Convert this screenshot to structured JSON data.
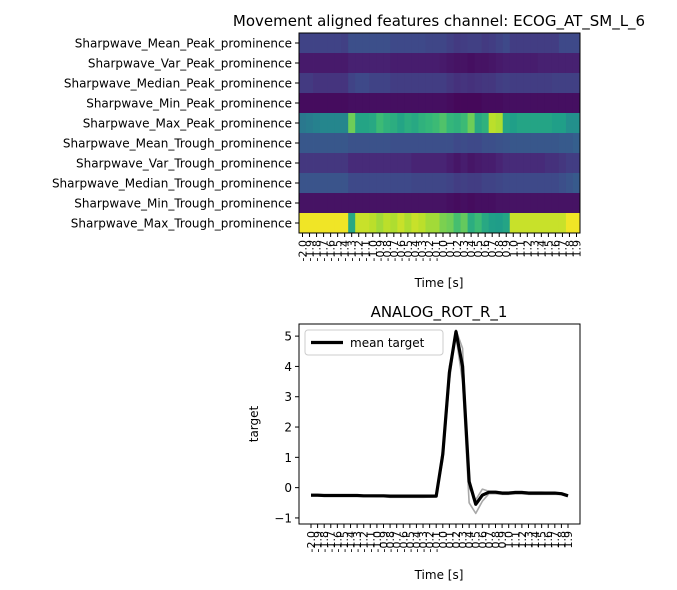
{
  "figure": {
    "panels": [
      {
        "title": "Movement aligned features channel: ECOG_AT_SM_L_6",
        "xlabel": "Time [s]"
      },
      {
        "title": "ANALOG_ROT_R_1",
        "xlabel": "Time [s]",
        "ylabel": "target"
      }
    ]
  },
  "chart_data": [
    {
      "type": "heatmap",
      "title": "Movement aligned features channel: ECOG_AT_SM_L_6",
      "xlabel": "Time [s]",
      "colormap": "viridis",
      "rows": [
        "Sharpwave_Mean_Peak_prominence",
        "Sharpwave_Var_Peak_prominence",
        "Sharpwave_Median_Peak_prominence",
        "Sharpwave_Min_Peak_prominence",
        "Sharpwave_Max_Peak_prominence",
        "Sharpwave_Mean_Trough_prominence",
        "Sharpwave_Var_Trough_prominence",
        "Sharpwave_Median_Trough_prominence",
        "Sharpwave_Min_Trough_prominence",
        "Sharpwave_Max_Trough_prominence"
      ],
      "x_ticks": [
        "-2.0",
        "-1.9",
        "-1.8",
        "-1.7",
        "-1.6",
        "-1.5",
        "-1.4",
        "-1.3",
        "-1.2",
        "-1.1",
        "-1.0",
        "-0.9",
        "-0.8",
        "-0.7",
        "-0.6",
        "-0.5",
        "-0.4",
        "-0.3",
        "-0.2",
        "-0.1",
        "0.0",
        "0.1",
        "0.2",
        "0.3",
        "0.4",
        "0.5",
        "0.6",
        "0.7",
        "0.8",
        "0.9",
        "1.0",
        "1.1",
        "1.2",
        "1.3",
        "1.4",
        "1.5",
        "1.6",
        "1.7",
        "1.8",
        "1.9"
      ],
      "values": [
        [
          0.2,
          0.2,
          0.2,
          0.2,
          0.2,
          0.2,
          0.19,
          0.24,
          0.24,
          0.24,
          0.24,
          0.24,
          0.24,
          0.22,
          0.22,
          0.22,
          0.22,
          0.22,
          0.21,
          0.21,
          0.21,
          0.19,
          0.17,
          0.18,
          0.19,
          0.19,
          0.17,
          0.18,
          0.2,
          0.22,
          0.18,
          0.18,
          0.18,
          0.18,
          0.18,
          0.18,
          0.18,
          0.22,
          0.22,
          0.22
        ],
        [
          0.07,
          0.07,
          0.07,
          0.07,
          0.07,
          0.07,
          0.07,
          0.09,
          0.09,
          0.09,
          0.09,
          0.09,
          0.09,
          0.08,
          0.08,
          0.08,
          0.08,
          0.08,
          0.08,
          0.08,
          0.07,
          0.06,
          0.05,
          0.05,
          0.04,
          0.05,
          0.05,
          0.06,
          0.07,
          0.08,
          0.08,
          0.08,
          0.08,
          0.08,
          0.09,
          0.09,
          0.09,
          0.09,
          0.09,
          0.09
        ],
        [
          0.17,
          0.17,
          0.15,
          0.15,
          0.15,
          0.15,
          0.15,
          0.2,
          0.22,
          0.22,
          0.2,
          0.2,
          0.2,
          0.18,
          0.18,
          0.18,
          0.18,
          0.18,
          0.18,
          0.18,
          0.18,
          0.16,
          0.14,
          0.15,
          0.14,
          0.15,
          0.16,
          0.16,
          0.18,
          0.19,
          0.18,
          0.18,
          0.18,
          0.18,
          0.18,
          0.18,
          0.19,
          0.19,
          0.19,
          0.19
        ],
        [
          0.03,
          0.03,
          0.03,
          0.03,
          0.03,
          0.03,
          0.03,
          0.04,
          0.04,
          0.04,
          0.04,
          0.04,
          0.04,
          0.04,
          0.04,
          0.04,
          0.04,
          0.04,
          0.04,
          0.04,
          0.04,
          0.03,
          0.02,
          0.02,
          0.02,
          0.02,
          0.03,
          0.03,
          0.03,
          0.04,
          0.04,
          0.04,
          0.04,
          0.04,
          0.04,
          0.04,
          0.04,
          0.04,
          0.04,
          0.04
        ],
        [
          0.4,
          0.42,
          0.44,
          0.46,
          0.46,
          0.46,
          0.46,
          0.78,
          0.58,
          0.58,
          0.6,
          0.68,
          0.64,
          0.62,
          0.58,
          0.62,
          0.6,
          0.64,
          0.66,
          0.68,
          0.72,
          0.66,
          0.64,
          0.68,
          0.78,
          0.6,
          0.64,
          0.9,
          0.88,
          0.58,
          0.56,
          0.58,
          0.58,
          0.58,
          0.58,
          0.58,
          0.56,
          0.56,
          0.5,
          0.5
        ],
        [
          0.27,
          0.27,
          0.27,
          0.27,
          0.27,
          0.27,
          0.27,
          0.25,
          0.25,
          0.25,
          0.25,
          0.25,
          0.25,
          0.24,
          0.24,
          0.24,
          0.24,
          0.24,
          0.24,
          0.24,
          0.24,
          0.24,
          0.22,
          0.23,
          0.22,
          0.22,
          0.24,
          0.24,
          0.25,
          0.26,
          0.27,
          0.27,
          0.27,
          0.27,
          0.27,
          0.27,
          0.27,
          0.28,
          0.28,
          0.3
        ],
        [
          0.16,
          0.16,
          0.16,
          0.16,
          0.16,
          0.16,
          0.16,
          0.12,
          0.12,
          0.12,
          0.12,
          0.12,
          0.12,
          0.12,
          0.12,
          0.12,
          0.1,
          0.1,
          0.1,
          0.1,
          0.1,
          0.08,
          0.06,
          0.08,
          0.06,
          0.07,
          0.08,
          0.08,
          0.1,
          0.12,
          0.12,
          0.12,
          0.12,
          0.12,
          0.12,
          0.14,
          0.14,
          0.16,
          0.18,
          0.18
        ],
        [
          0.26,
          0.26,
          0.26,
          0.26,
          0.26,
          0.26,
          0.26,
          0.22,
          0.22,
          0.22,
          0.22,
          0.22,
          0.22,
          0.22,
          0.22,
          0.22,
          0.21,
          0.21,
          0.21,
          0.21,
          0.21,
          0.2,
          0.18,
          0.19,
          0.18,
          0.18,
          0.2,
          0.2,
          0.21,
          0.22,
          0.22,
          0.22,
          0.22,
          0.22,
          0.22,
          0.22,
          0.22,
          0.24,
          0.26,
          0.28
        ],
        [
          0.05,
          0.05,
          0.05,
          0.05,
          0.05,
          0.05,
          0.05,
          0.05,
          0.05,
          0.05,
          0.05,
          0.05,
          0.05,
          0.05,
          0.05,
          0.05,
          0.05,
          0.05,
          0.05,
          0.05,
          0.05,
          0.04,
          0.03,
          0.04,
          0.03,
          0.04,
          0.04,
          0.04,
          0.05,
          0.05,
          0.05,
          0.05,
          0.05,
          0.05,
          0.05,
          0.05,
          0.05,
          0.05,
          0.05,
          0.05
        ],
        [
          0.98,
          0.98,
          0.98,
          0.98,
          0.98,
          0.98,
          0.98,
          0.6,
          0.92,
          0.92,
          0.9,
          0.86,
          0.9,
          0.88,
          0.92,
          0.88,
          0.92,
          0.9,
          0.86,
          0.86,
          0.8,
          0.78,
          0.7,
          0.76,
          0.62,
          0.68,
          0.6,
          0.56,
          0.55,
          0.58,
          0.92,
          0.92,
          0.92,
          0.92,
          0.92,
          0.92,
          0.92,
          0.92,
          0.98,
          0.98
        ]
      ]
    },
    {
      "type": "line",
      "title": "ANALOG_ROT_R_1",
      "xlabel": "Time [s]",
      "ylabel": "target",
      "ylim": [
        -1.2,
        5.4
      ],
      "y_ticks": [
        -1,
        0,
        1,
        2,
        3,
        4,
        5
      ],
      "x_ticks": [
        "-2.0",
        "-1.9",
        "-1.8",
        "-1.7",
        "-1.6",
        "-1.5",
        "-1.4",
        "-1.3",
        "-1.2",
        "-1.1",
        "-1.0",
        "-0.9",
        "-0.8",
        "-0.7",
        "-0.6",
        "-0.5",
        "-0.4",
        "-0.3",
        "-0.2",
        "-0.1",
        "0.0",
        "0.1",
        "0.2",
        "0.3",
        "0.4",
        "0.5",
        "0.6",
        "0.7",
        "0.8",
        "0.9",
        "1.0",
        "1.1",
        "1.2",
        "1.3",
        "1.4",
        "1.5",
        "1.6",
        "1.7",
        "1.8",
        "1.9"
      ],
      "legend": {
        "position": "top-left"
      },
      "series": [
        {
          "name": "mean target",
          "color": "#000000",
          "values": [
            -0.25,
            -0.25,
            -0.26,
            -0.26,
            -0.26,
            -0.26,
            -0.26,
            -0.26,
            -0.27,
            -0.27,
            -0.27,
            -0.27,
            -0.28,
            -0.28,
            -0.28,
            -0.28,
            -0.28,
            -0.28,
            -0.28,
            -0.28,
            1.1,
            3.8,
            5.15,
            4.0,
            0.2,
            -0.55,
            -0.25,
            -0.15,
            -0.15,
            -0.18,
            -0.18,
            -0.16,
            -0.16,
            -0.18,
            -0.18,
            -0.18,
            -0.18,
            -0.18,
            -0.2,
            -0.27
          ]
        },
        {
          "name": "",
          "color": "#999999",
          "values": [
            -0.22,
            -0.22,
            -0.24,
            -0.24,
            -0.24,
            -0.24,
            -0.25,
            -0.25,
            -0.26,
            -0.26,
            -0.26,
            -0.26,
            -0.27,
            -0.28,
            -0.28,
            -0.27,
            -0.27,
            -0.27,
            -0.27,
            -0.27,
            0.9,
            3.5,
            5.2,
            4.6,
            0.0,
            -0.4,
            -0.05,
            -0.12,
            -0.12,
            -0.15,
            -0.15,
            -0.13,
            -0.13,
            -0.15,
            -0.15,
            -0.15,
            -0.16,
            -0.17,
            -0.2,
            -0.27
          ]
        },
        {
          "name": "",
          "color": "#999999",
          "values": [
            -0.28,
            -0.28,
            -0.28,
            -0.28,
            -0.28,
            -0.28,
            -0.28,
            -0.28,
            -0.29,
            -0.29,
            -0.3,
            -0.3,
            -0.32,
            -0.32,
            -0.32,
            -0.32,
            -0.32,
            -0.32,
            -0.31,
            -0.3,
            1.3,
            4.0,
            5.0,
            3.5,
            -0.5,
            -0.85,
            -0.45,
            -0.2,
            -0.2,
            -0.22,
            -0.22,
            -0.2,
            -0.2,
            -0.22,
            -0.22,
            -0.22,
            -0.22,
            -0.22,
            -0.23,
            -0.28
          ]
        }
      ]
    }
  ]
}
